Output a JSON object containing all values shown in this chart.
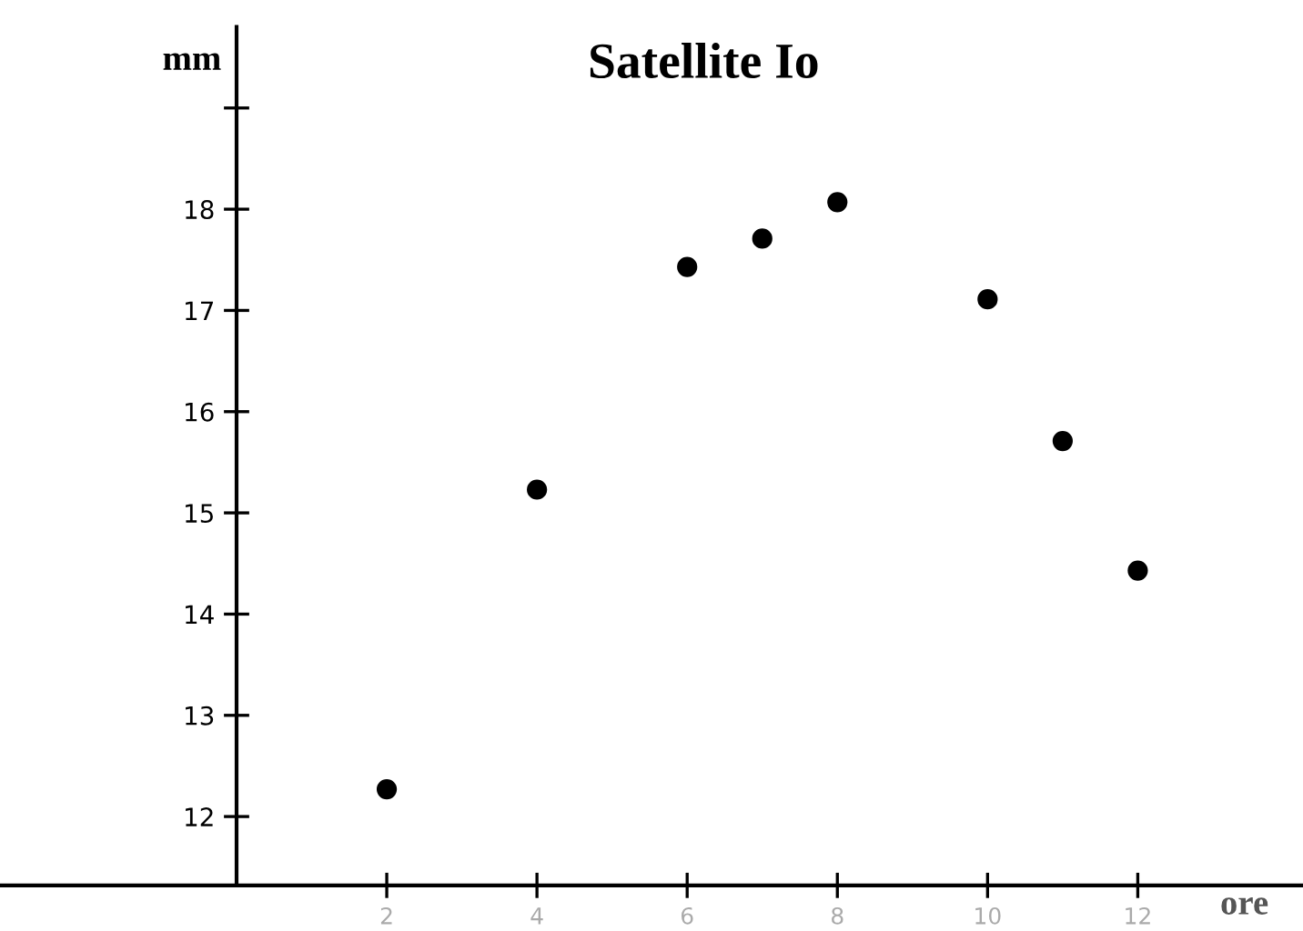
{
  "chart_data": {
    "type": "scatter",
    "title": "Satellite Io",
    "xlabel": "ore",
    "ylabel": "mm",
    "x": [
      2,
      4,
      6,
      7,
      8,
      10,
      11,
      12
    ],
    "values": [
      12.27,
      15.23,
      17.43,
      17.71,
      18.07,
      17.11,
      15.71,
      14.43
    ],
    "color": "#000000",
    "marker": "circle",
    "xlim": [
      -3.15,
      14.2
    ],
    "xticks": [
      2,
      4,
      6,
      8,
      10,
      12
    ],
    "ylim": [
      11.32,
      19.8
    ],
    "yticks": [
      12,
      13,
      14,
      15,
      16,
      17,
      18,
      {
        "value": 19,
        "label": null
      }
    ],
    "grid": false,
    "legend": false
  }
}
